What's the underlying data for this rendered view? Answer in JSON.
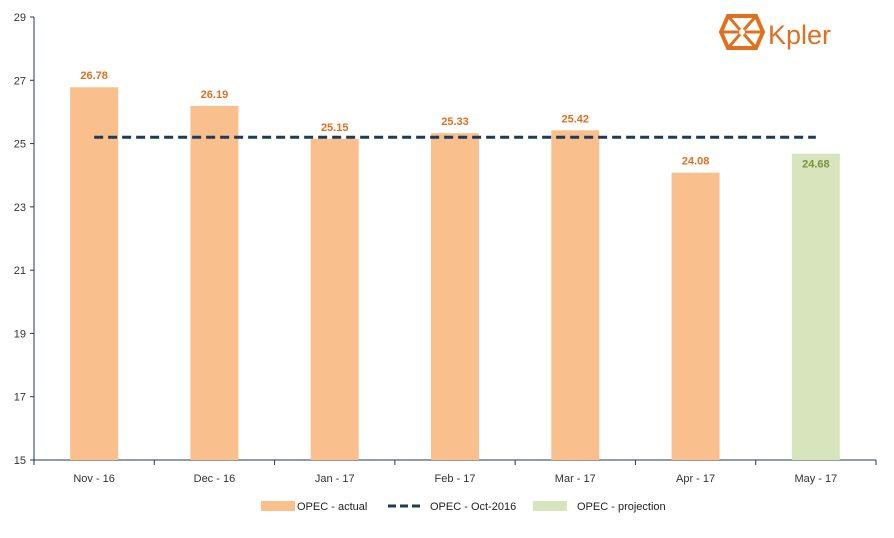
{
  "brand": {
    "logo_text": "Kpler",
    "color": "#e07020"
  },
  "chart_data": {
    "type": "bar",
    "title": "",
    "xlabel": "",
    "ylabel": "",
    "categories": [
      "Nov - 16",
      "Dec - 16",
      "Jan - 17",
      "Feb - 17",
      "Mar - 17",
      "Apr - 17",
      "May  - 17"
    ],
    "series": [
      {
        "name": "OPEC - actual",
        "type": "bar",
        "color": "#f9c08e",
        "label_color": "#e07020",
        "values": [
          26.78,
          26.19,
          25.15,
          25.33,
          25.42,
          24.08,
          null
        ]
      },
      {
        "name": "OPEC - projection",
        "type": "bar",
        "color": "#d7e4bc",
        "label_color": "#77933c",
        "values": [
          null,
          null,
          null,
          null,
          null,
          null,
          24.68
        ]
      },
      {
        "name": "OPEC - Oct-2016",
        "type": "line",
        "style": "dashed",
        "color": "#1f3a5a",
        "values": [
          25.2,
          25.2,
          25.2,
          25.2,
          25.2,
          25.2,
          25.2
        ]
      }
    ],
    "value_labels": [
      "26.78",
      "26.19",
      "25.15",
      "25.33",
      "25.42",
      "24.08",
      "24.68"
    ],
    "ylim": [
      15,
      29
    ],
    "yticks": [
      "15",
      "17",
      "19",
      "21",
      "23",
      "25",
      "27",
      "29"
    ],
    "grid": false,
    "legend": {
      "position": "bottom",
      "entries": [
        "OPEC - actual",
        "OPEC - Oct-2016",
        "OPEC - projection"
      ]
    }
  }
}
